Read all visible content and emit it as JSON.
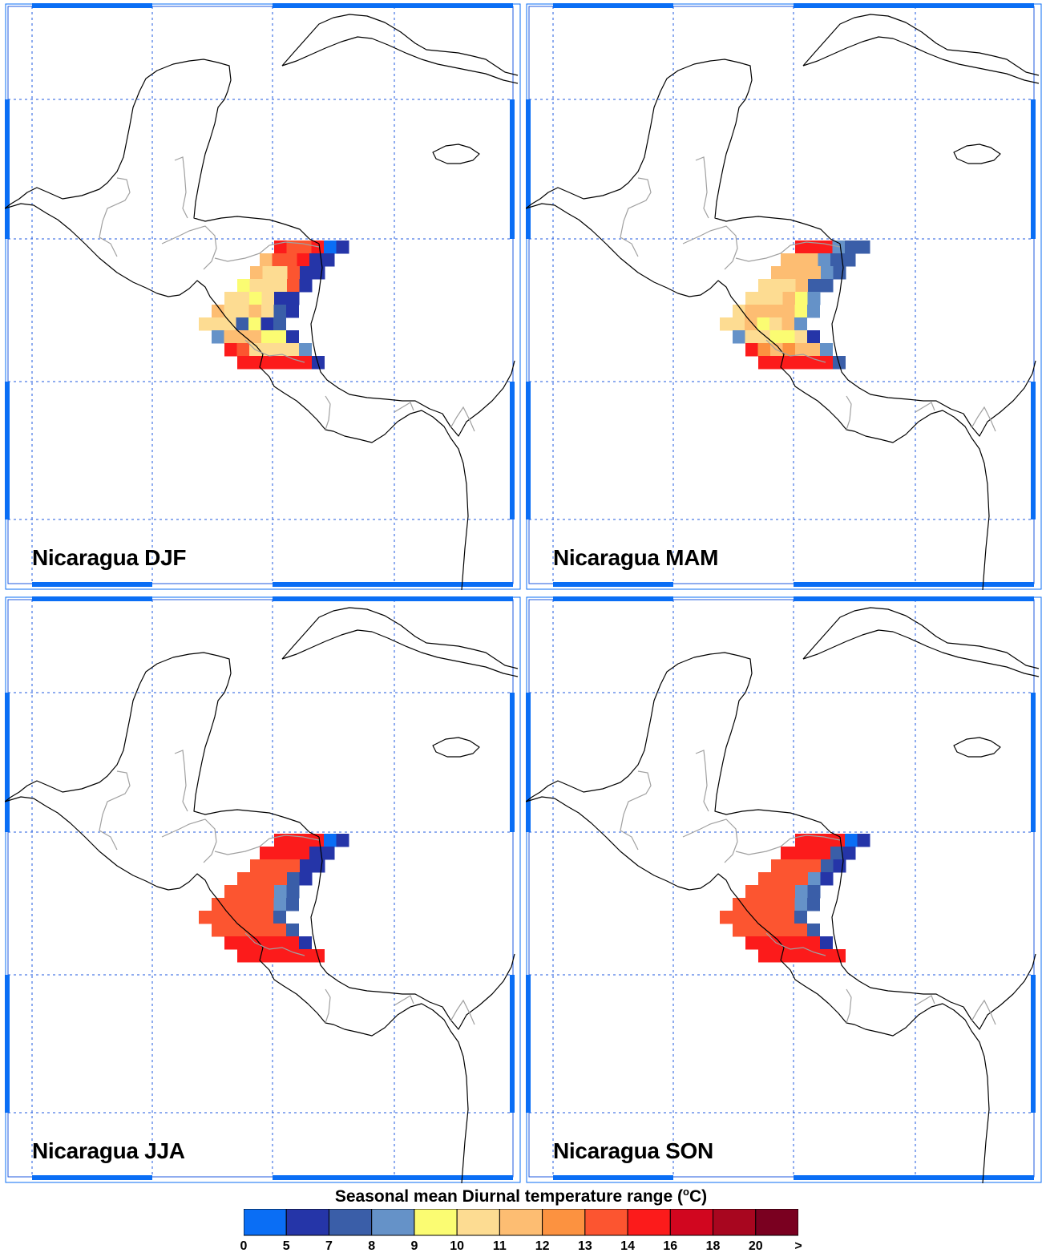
{
  "panels": [
    {
      "title": "Nicaragua DJF",
      "season": "DJF",
      "cells": [
        [
          9,
          8,
          8,
          9,
          0,
          1
        ],
        [
          6,
          8,
          8,
          9,
          1,
          1
        ],
        [
          6,
          5,
          5,
          8,
          1,
          1
        ],
        [
          4,
          5,
          5,
          5,
          8,
          1
        ],
        [
          5,
          5,
          4,
          5,
          1,
          1
        ],
        [
          6,
          5,
          5,
          6,
          5,
          2,
          1
        ],
        [
          5,
          5,
          5,
          2,
          4,
          1,
          2
        ],
        [
          3,
          6,
          6,
          6,
          4,
          4,
          1
        ],
        [
          9,
          8,
          5,
          5,
          5,
          5,
          3
        ],
        [
          9,
          9,
          9,
          9,
          9,
          9,
          1
        ]
      ]
    },
    {
      "title": "Nicaragua MAM",
      "season": "MAM",
      "cells": [
        [
          9,
          9,
          9,
          3,
          2,
          2
        ],
        [
          6,
          6,
          6,
          3,
          2,
          2
        ],
        [
          6,
          6,
          6,
          6,
          3,
          2
        ],
        [
          5,
          5,
          5,
          6,
          2,
          2
        ],
        [
          5,
          5,
          5,
          6,
          4,
          3
        ],
        [
          5,
          6,
          6,
          6,
          6,
          4,
          3
        ],
        [
          5,
          5,
          6,
          4,
          5,
          6,
          3
        ],
        [
          3,
          5,
          5,
          4,
          4,
          5,
          1
        ],
        [
          9,
          7,
          6,
          7,
          6,
          6,
          3
        ],
        [
          9,
          9,
          9,
          9,
          9,
          9,
          2
        ]
      ]
    },
    {
      "title": "Nicaragua JJA",
      "season": "JJA",
      "cells": [
        [
          9,
          9,
          9,
          9,
          0,
          1
        ],
        [
          9,
          9,
          9,
          9,
          1,
          1
        ],
        [
          8,
          8,
          8,
          8,
          1,
          1
        ],
        [
          8,
          8,
          8,
          8,
          2,
          1
        ],
        [
          8,
          8,
          8,
          8,
          3,
          2
        ],
        [
          8,
          8,
          8,
          8,
          8,
          3,
          2
        ],
        [
          8,
          8,
          8,
          8,
          8,
          8,
          2
        ],
        [
          8,
          8,
          8,
          8,
          8,
          8,
          2
        ],
        [
          9,
          9,
          9,
          9,
          9,
          9,
          1
        ],
        [
          9,
          9,
          9,
          9,
          9,
          9,
          9
        ]
      ]
    },
    {
      "title": "Nicaragua SON",
      "season": "SON",
      "cells": [
        [
          9,
          9,
          9,
          9,
          0,
          1
        ],
        [
          9,
          9,
          9,
          9,
          2,
          1
        ],
        [
          8,
          8,
          8,
          8,
          2,
          1
        ],
        [
          8,
          8,
          8,
          8,
          3,
          1
        ],
        [
          8,
          8,
          8,
          8,
          3,
          2
        ],
        [
          8,
          8,
          8,
          8,
          8,
          3,
          2
        ],
        [
          8,
          8,
          8,
          8,
          8,
          8,
          2
        ],
        [
          8,
          8,
          8,
          8,
          8,
          8,
          2
        ],
        [
          9,
          9,
          9,
          9,
          9,
          9,
          1
        ],
        [
          9,
          9,
          9,
          9,
          9,
          9,
          9
        ]
      ]
    }
  ],
  "legend": {
    "title": "Seasonal mean Diurnal temperature range (",
    "unit_sup": "o",
    "unit_suffix": "C)",
    "bins": [
      {
        "from": "0",
        "color": "#0a6ef5"
      },
      {
        "from": "5",
        "color": "#2535a8"
      },
      {
        "from": "7",
        "color": "#3a5ea8"
      },
      {
        "from": "8",
        "color": "#6592c8"
      },
      {
        "from": "9",
        "color": "#fbfc72"
      },
      {
        "from": "10",
        "color": "#fddc92"
      },
      {
        "from": "11",
        "color": "#fdbd72"
      },
      {
        "from": "12",
        "color": "#fc9240"
      },
      {
        "from": "13",
        "color": "#fc5530"
      },
      {
        "from": "14",
        "color": "#fc1b1b"
      },
      {
        "from": "16",
        "color": "#d1061f"
      },
      {
        "from": "18",
        "color": "#a8061f"
      },
      {
        "from": "20",
        "color": "#7a0020"
      }
    ],
    "tick_labels": [
      "0",
      "5",
      "7",
      "8",
      "9",
      "10",
      "11",
      "12",
      "13",
      "14",
      "16",
      "18",
      "20",
      ">"
    ]
  },
  "colors": {
    "frame_blue": "#0a6ef5",
    "grid_blue": "#1f5adf",
    "coast": "#000000",
    "border": "#a0a0a0"
  }
}
